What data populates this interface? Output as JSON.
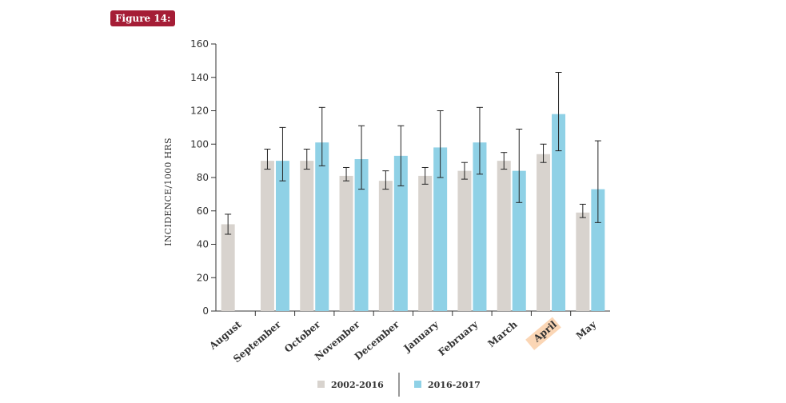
{
  "figure_label": "Figure 14:",
  "colors": {
    "series_a": "#d8d3ce",
    "series_b": "#8fd1e6",
    "badge": "#a51d36",
    "highlight": "#fbd6b5",
    "axis": "#333333"
  },
  "chart_data": {
    "type": "bar",
    "title": "",
    "xlabel": "",
    "ylabel": "INCIDENCE/1000 HRS",
    "ylim": [
      0,
      160
    ],
    "yticks": [
      0,
      20,
      40,
      60,
      80,
      100,
      120,
      140,
      160
    ],
    "categories": [
      "August",
      "September",
      "October",
      "November",
      "December",
      "January",
      "February",
      "March",
      "April",
      "May"
    ],
    "highlighted_category": "April",
    "series": [
      {
        "name": "2002-2016",
        "values": [
          52,
          90,
          90,
          81,
          78,
          81,
          84,
          90,
          94,
          59
        ],
        "error": [
          [
            46,
            58
          ],
          [
            85,
            97
          ],
          [
            85,
            97
          ],
          [
            78,
            86
          ],
          [
            73,
            84
          ],
          [
            76,
            86
          ],
          [
            79,
            89
          ],
          [
            85,
            95
          ],
          [
            89,
            100
          ],
          [
            56,
            64
          ]
        ]
      },
      {
        "name": "2016-2017",
        "values": [
          null,
          90,
          101,
          91,
          93,
          98,
          101,
          84,
          118,
          73
        ],
        "error": [
          null,
          [
            78,
            110
          ],
          [
            87,
            122
          ],
          [
            73,
            111
          ],
          [
            75,
            111
          ],
          [
            80,
            120
          ],
          [
            82,
            122
          ],
          [
            65,
            109
          ],
          [
            96,
            143
          ],
          [
            53,
            102
          ]
        ]
      }
    ],
    "legend_position": "bottom",
    "grid": false
  }
}
